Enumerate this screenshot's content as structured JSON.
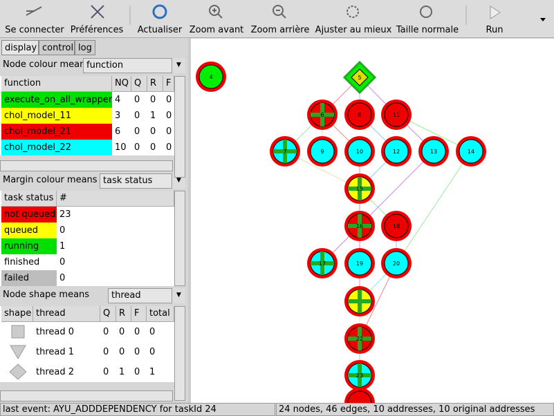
{
  "toolbar": {
    "buttons": [
      "Se connecter",
      "Préférences",
      "Actualiser",
      "Zoom avant",
      "Zoom arrière",
      "Ajuster au mieux",
      "Taille normale",
      "Run"
    ]
  },
  "tabs": [
    "display",
    "control",
    "log"
  ],
  "node_colour": {
    "label": "Node colour mean",
    "select": "function",
    "header": [
      "function",
      "NQ",
      "Q",
      "R",
      "F"
    ],
    "rows": [
      {
        "color": "#00e000",
        "cells": [
          "execute_on_all_wrapper",
          "4",
          "0",
          "0",
          "0"
        ]
      },
      {
        "color": "#ffff00",
        "cells": [
          "chol_model_11",
          "3",
          "0",
          "1",
          "0"
        ]
      },
      {
        "color": "#ee0000",
        "cells": [
          "chol_model_21",
          "6",
          "0",
          "0",
          "0"
        ]
      },
      {
        "color": "#00ffff",
        "cells": [
          "chol_model_22",
          "10",
          "0",
          "0",
          "0"
        ]
      }
    ]
  },
  "margin": {
    "label": "Margin colour means",
    "select": "task status",
    "header": [
      "task status",
      "#"
    ],
    "rows": [
      {
        "color": "#ee0000",
        "cells": [
          "not queued",
          "23"
        ]
      },
      {
        "color": "#ffff00",
        "cells": [
          "queued",
          "0"
        ]
      },
      {
        "color": "#00e000",
        "cells": [
          "running",
          "1"
        ]
      },
      {
        "color": "#ffffff",
        "cells": [
          "finished",
          "0"
        ]
      },
      {
        "color": "#bdbdbd",
        "cells": [
          "failed",
          "0"
        ]
      }
    ]
  },
  "shape": {
    "label": "Node shape means",
    "select": "thread",
    "header": [
      "shape",
      "thread",
      "Q",
      "R",
      "F",
      "total"
    ],
    "rows": [
      {
        "shape": "square",
        "cells": [
          "thread 0",
          "0",
          "0",
          "0",
          "0"
        ]
      },
      {
        "shape": "triangle",
        "cells": [
          "thread 1",
          "0",
          "0",
          "0",
          "0"
        ]
      },
      {
        "shape": "diamond",
        "cells": [
          "thread 2",
          "0",
          "1",
          "0",
          "1"
        ]
      }
    ]
  },
  "graph": {
    "nodes": [
      {
        "label": "4",
        "fill": "#00ee00"
      },
      {
        "label": "5",
        "fill": "#00ee00",
        "shape": "diamond"
      },
      {
        "label": "6",
        "fill": "#ee0000",
        "cross": true
      },
      {
        "label": "8",
        "fill": "#ee0000"
      },
      {
        "label": "11",
        "fill": "#ee0000"
      },
      {
        "label": "7",
        "fill": "#00ffff",
        "cross": true
      },
      {
        "label": "9",
        "fill": "#00ffff"
      },
      {
        "label": "10",
        "fill": "#00ffff"
      },
      {
        "label": "12",
        "fill": "#00ffff"
      },
      {
        "label": "13",
        "fill": "#00ffff"
      },
      {
        "label": "14",
        "fill": "#00ffff"
      },
      {
        "label": "15",
        "fill": "#ffff00",
        "cross": true
      },
      {
        "label": "16",
        "fill": "#ee0000",
        "cross": true
      },
      {
        "label": "18",
        "fill": "#ee0000"
      },
      {
        "label": "17",
        "fill": "#00ffff",
        "cross": true
      },
      {
        "label": "19",
        "fill": "#00ffff"
      },
      {
        "label": "20",
        "fill": "#00ffff"
      },
      {
        "label": "22",
        "fill": "#ee0000",
        "cross": true
      },
      {
        "label": "23",
        "fill": "#00ffff",
        "cross": true
      }
    ]
  },
  "status": {
    "left": "last event: AYU_ADDDEPENDENCY for taskId 24",
    "right": "24 nodes, 46 edges, 10 addresses, 10 original addresses"
  }
}
